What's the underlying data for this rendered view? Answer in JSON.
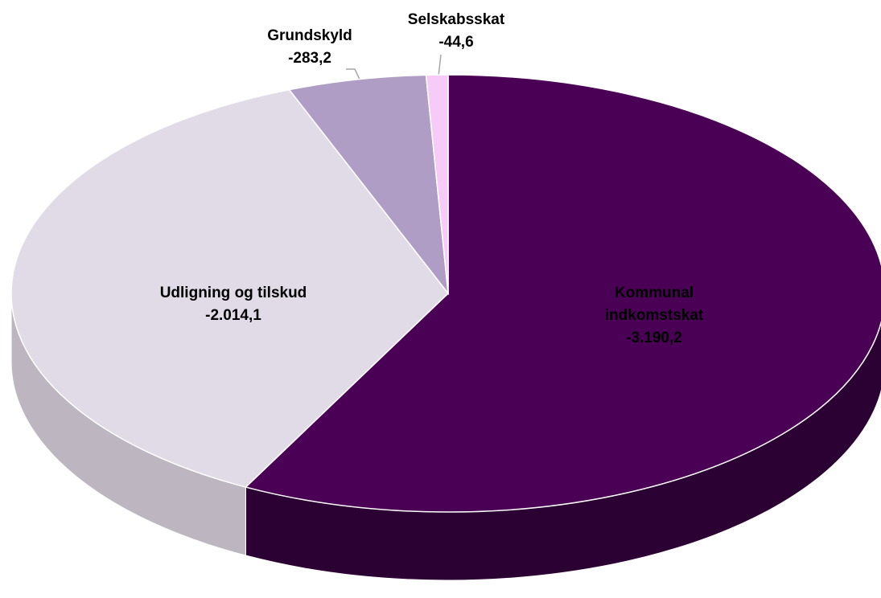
{
  "chart_data": {
    "type": "pie",
    "categories": [
      "Kommunal indkomstskat",
      "Udligning og tilskud",
      "Grundskyld",
      "Selskabsskat"
    ],
    "values": [
      -3190.2,
      -2014.1,
      -283.2,
      -44.6
    ],
    "value_labels": [
      "-3.190,2",
      "-2.014,1",
      "-283,2",
      "-44,6"
    ],
    "colors": [
      "#4a0055",
      "#e1dbe8",
      "#b09dc6",
      "#f6cbf8"
    ],
    "side_colors": [
      "#2b0032",
      "#bdb6c0",
      "#8e7ea2",
      "#cfa7d2"
    ]
  }
}
